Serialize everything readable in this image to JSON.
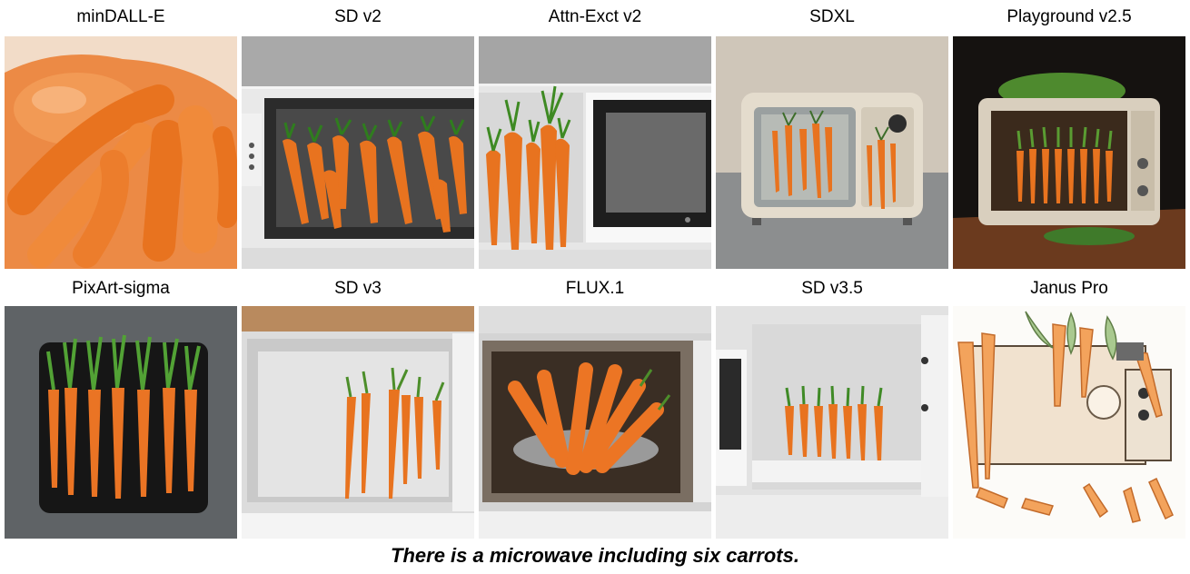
{
  "panels": [
    {
      "model": "minDALL-E"
    },
    {
      "model": "SD v2"
    },
    {
      "model": "Attn-Exct v2"
    },
    {
      "model": "SDXL"
    },
    {
      "model": "Playground v2.5"
    },
    {
      "model": "PixArt-sigma"
    },
    {
      "model": "SD v3"
    },
    {
      "model": "FLUX.1"
    },
    {
      "model": "SD v3.5"
    },
    {
      "model": "Janus Pro"
    }
  ],
  "caption": "There is a microwave including six carrots.",
  "colors": {
    "carrot": "#e8731f",
    "leaf": "#3f8a2a",
    "background": "#ffffff"
  }
}
